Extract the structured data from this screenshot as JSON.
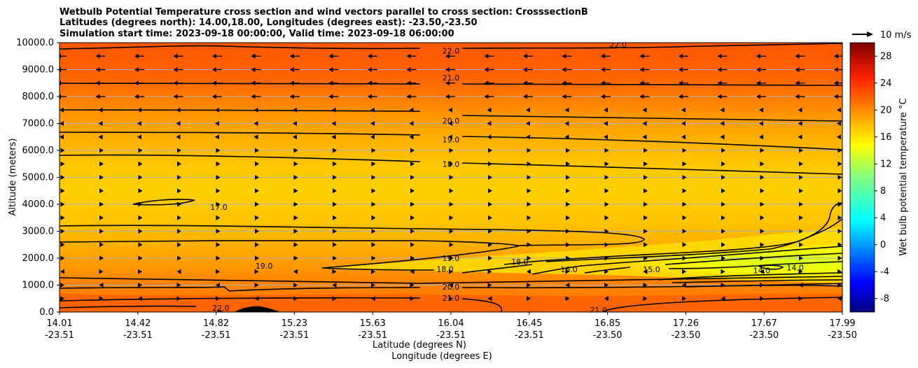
{
  "chart_data": {
    "type": "heatmap",
    "title_lines": [
      "Wetbulb Potential Temperature cross section and wind vectors parallel to cross section: CrosssectionB",
      "Latitudes (degrees north): 14.00,18.00, Longitudes (degrees east): -23.50,-23.50",
      "Simulation start time: 2023-09-18 00:00:00, Valid time: 2023-09-18 06:00:00"
    ],
    "ylabel": "Altitude (meters)",
    "xlabel_lines": [
      "Latitude (degrees N)",
      "Longitude (degrees E)"
    ],
    "x_ticks": [
      {
        "lat": "14.01",
        "lon": "-23.51"
      },
      {
        "lat": "14.42",
        "lon": "-23.51"
      },
      {
        "lat": "14.82",
        "lon": "-23.51"
      },
      {
        "lat": "15.23",
        "lon": "-23.51"
      },
      {
        "lat": "15.63",
        "lon": "-23.51"
      },
      {
        "lat": "16.04",
        "lon": "-23.51"
      },
      {
        "lat": "16.45",
        "lon": "-23.51"
      },
      {
        "lat": "16.85",
        "lon": "-23.50"
      },
      {
        "lat": "17.26",
        "lon": "-23.50"
      },
      {
        "lat": "17.67",
        "lon": "-23.50"
      },
      {
        "lat": "17.99",
        "lon": "-23.50"
      }
    ],
    "y_ticks": [
      "0.0",
      "1000.0",
      "2000.0",
      "3000.0",
      "4000.0",
      "5000.0",
      "6000.0",
      "7000.0",
      "8000.0",
      "9000.0",
      "10000.0"
    ],
    "ylim": [
      0,
      10000
    ],
    "xlim": [
      14.01,
      17.99
    ],
    "grid": "horizontal",
    "colorbar": {
      "label": "Wet bulb potential temperature °C",
      "ticks": [
        "-8",
        "-4",
        "0",
        "4",
        "8",
        "12",
        "16",
        "20",
        "24",
        "28"
      ],
      "range": [
        -10,
        30
      ],
      "colormap": "jet"
    },
    "quiver_key": "10 m/s",
    "contour_labels": [
      {
        "text": "22.0",
        "lat": 16.0,
        "alt": 9700
      },
      {
        "text": "22.0",
        "lat": 16.85,
        "alt": 9920
      },
      {
        "text": "21.0",
        "lat": 16.0,
        "alt": 8700
      },
      {
        "text": "20.0",
        "lat": 16.0,
        "alt": 7100
      },
      {
        "text": "19.0",
        "lat": 16.0,
        "alt": 6400
      },
      {
        "text": "18.0",
        "lat": 16.0,
        "alt": 5500
      },
      {
        "text": "17.0",
        "lat": 14.82,
        "alt": 3900
      },
      {
        "text": "19.0",
        "lat": 15.05,
        "alt": 1720
      },
      {
        "text": "19.0",
        "lat": 16.0,
        "alt": 2000
      },
      {
        "text": "18.0",
        "lat": 15.97,
        "alt": 1600
      },
      {
        "text": "18.0",
        "lat": 16.35,
        "alt": 1870
      },
      {
        "text": "16.0",
        "lat": 16.6,
        "alt": 1580
      },
      {
        "text": "15.0",
        "lat": 17.02,
        "alt": 1580
      },
      {
        "text": "14.0",
        "lat": 17.58,
        "alt": 1550
      },
      {
        "text": "14.0",
        "lat": 17.75,
        "alt": 1650
      },
      {
        "text": "20.0",
        "lat": 16.0,
        "alt": 940
      },
      {
        "text": "21.0",
        "lat": 16.0,
        "alt": 520
      },
      {
        "text": "22.0",
        "lat": 14.83,
        "alt": 150
      },
      {
        "text": "21.0",
        "lat": 16.75,
        "alt": 80
      }
    ],
    "wind_direction_by_altitude": [
      {
        "alt_range": [
          8000,
          10000
        ],
        "direction": "westward",
        "speed": "strong"
      },
      {
        "alt_range": [
          6500,
          8000
        ],
        "direction": "westward",
        "speed": "weak"
      },
      {
        "alt_range": [
          1800,
          6500
        ],
        "direction": "eastward",
        "speed": "weak"
      },
      {
        "alt_range": [
          0,
          1800
        ],
        "direction": "mixed",
        "speed": "weak"
      }
    ]
  }
}
